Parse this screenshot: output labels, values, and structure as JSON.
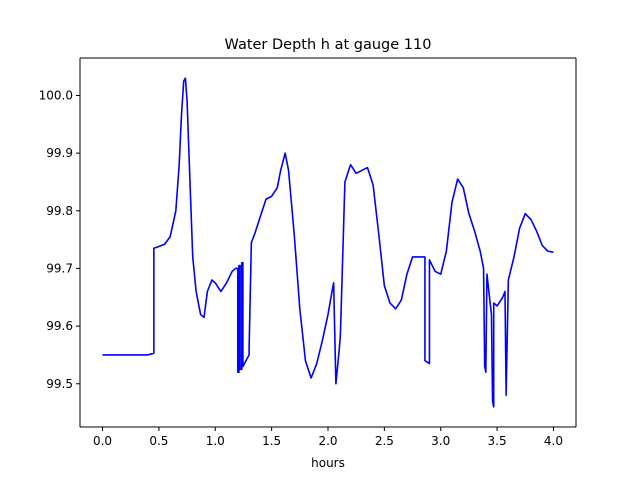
{
  "chart_data": {
    "type": "line",
    "title": "Water Depth h at gauge 110",
    "xlabel": "hours",
    "ylabel": "",
    "xlim": [
      -0.2,
      4.2
    ],
    "ylim": [
      99.425,
      100.065
    ],
    "xticks": [
      0.0,
      0.5,
      1.0,
      1.5,
      2.0,
      2.5,
      3.0,
      3.5,
      4.0
    ],
    "xtick_labels": [
      "0.0",
      "0.5",
      "1.0",
      "1.5",
      "2.0",
      "2.5",
      "3.0",
      "3.5",
      "4.0"
    ],
    "yticks": [
      99.5,
      99.6,
      99.7,
      99.8,
      99.9,
      100.0
    ],
    "ytick_labels": [
      "99.5",
      "99.6",
      "99.7",
      "99.8",
      "99.9",
      "100.0"
    ],
    "grid": false,
    "legend": "none",
    "series": [
      {
        "color": "#0000ff",
        "x": [
          0.0,
          0.2,
          0.4,
          0.455,
          0.455,
          0.5,
          0.55,
          0.6,
          0.65,
          0.68,
          0.7,
          0.72,
          0.735,
          0.75,
          0.77,
          0.8,
          0.83,
          0.87,
          0.9,
          0.93,
          0.97,
          1.0,
          1.05,
          1.1,
          1.15,
          1.18,
          1.2,
          1.2,
          1.21,
          1.21,
          1.22,
          1.22,
          1.235,
          1.235,
          1.245,
          1.245,
          1.3,
          1.3,
          1.32,
          1.35,
          1.4,
          1.45,
          1.5,
          1.55,
          1.58,
          1.62,
          1.65,
          1.7,
          1.75,
          1.8,
          1.85,
          1.9,
          1.95,
          2.0,
          2.04,
          2.05,
          2.07,
          2.1,
          2.11,
          2.15,
          2.2,
          2.25,
          2.3,
          2.35,
          2.4,
          2.45,
          2.5,
          2.55,
          2.6,
          2.65,
          2.7,
          2.75,
          2.8,
          2.83,
          2.86,
          2.86,
          2.9,
          2.9,
          2.95,
          3.0,
          3.05,
          3.1,
          3.15,
          3.2,
          3.25,
          3.3,
          3.35,
          3.38,
          3.39,
          3.4,
          3.41,
          3.45,
          3.46,
          3.47,
          3.47,
          3.5,
          3.55,
          3.57,
          3.58,
          3.58,
          3.6,
          3.65,
          3.7,
          3.75,
          3.8,
          3.85,
          3.9,
          3.95,
          4.0
        ],
        "y": [
          99.55,
          99.55,
          99.55,
          99.553,
          99.735,
          99.738,
          99.742,
          99.755,
          99.8,
          99.88,
          99.965,
          100.025,
          100.03,
          99.99,
          99.88,
          99.72,
          99.66,
          99.62,
          99.615,
          99.66,
          99.68,
          99.675,
          99.66,
          99.675,
          99.695,
          99.7,
          99.7,
          99.52,
          99.52,
          99.705,
          99.705,
          99.525,
          99.525,
          99.71,
          99.71,
          99.53,
          99.55,
          99.56,
          99.745,
          99.76,
          99.79,
          99.82,
          99.825,
          99.84,
          99.87,
          99.9,
          99.87,
          99.76,
          99.63,
          99.54,
          99.51,
          99.535,
          99.575,
          99.62,
          99.665,
          99.675,
          99.5,
          99.56,
          99.585,
          99.85,
          99.88,
          99.865,
          99.87,
          99.875,
          99.845,
          99.76,
          99.67,
          99.64,
          99.63,
          99.645,
          99.69,
          99.72,
          99.72,
          99.72,
          99.72,
          99.54,
          99.535,
          99.715,
          99.695,
          99.69,
          99.73,
          99.815,
          99.855,
          99.84,
          99.795,
          99.765,
          99.73,
          99.7,
          99.53,
          99.52,
          99.69,
          99.62,
          99.47,
          99.46,
          99.64,
          99.635,
          99.65,
          99.66,
          99.485,
          99.48,
          99.68,
          99.72,
          99.77,
          99.795,
          99.785,
          99.765,
          99.74,
          99.73,
          99.728
        ]
      }
    ]
  }
}
